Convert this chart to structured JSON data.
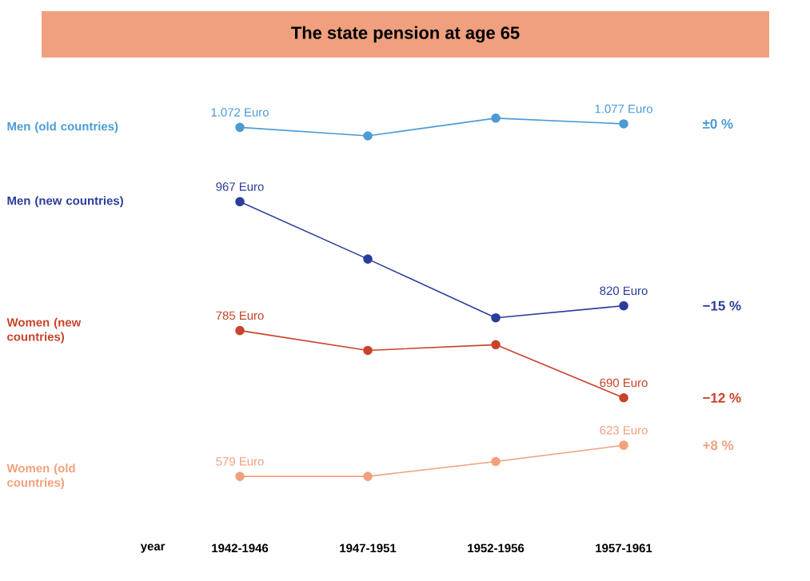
{
  "chart_data": {
    "type": "line",
    "title": "The state pension at age 65",
    "xlabel": "year",
    "categories": [
      "1942-1946",
      "1947-1951",
      "1952-1956",
      "1957-1961"
    ],
    "series": [
      {
        "name": "Men (old countries)",
        "color": "#4a9bd6",
        "values": [
          1072,
          1060,
          1085,
          1077
        ],
        "value_labels": [
          "1.072 Euro",
          null,
          null,
          "1.077 Euro"
        ]
      },
      {
        "name": "Men (new countries)",
        "color": "#2b3d9c",
        "values": [
          967,
          886,
          803,
          820
        ],
        "value_labels": [
          "967 Euro",
          null,
          null,
          "820 Euro"
        ]
      },
      {
        "name": "Women (new countries)",
        "color": "#c8432a",
        "values": [
          785,
          757,
          765,
          690
        ],
        "value_labels": [
          "785 Euro",
          null,
          null,
          "690 Euro"
        ]
      },
      {
        "name": "Women (old countries)",
        "color": "#f2a07c",
        "values": [
          579,
          579,
          600,
          623
        ],
        "value_labels": [
          "579 Euro",
          null,
          null,
          "623 Euro"
        ]
      }
    ],
    "annotations": [
      "±0 %",
      "−15 %",
      "−12 %",
      "+8 %"
    ],
    "marker": "circle",
    "line_style": "solid"
  }
}
